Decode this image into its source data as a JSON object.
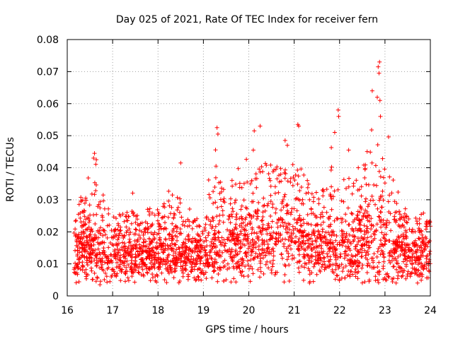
{
  "chart_data": {
    "type": "scatter",
    "title": "Day 025 of 2021, Rate Of TEC Index for receiver fern",
    "xlabel": "GPS time / hours",
    "ylabel": "ROTI / TECUs",
    "xlim": [
      16,
      24
    ],
    "ylim": [
      0,
      0.08
    ],
    "xticks": [
      "16",
      "17",
      "18",
      "19",
      "20",
      "21",
      "22",
      "23",
      "24"
    ],
    "yticks": [
      "0",
      "0.01",
      "0.02",
      "0.03",
      "0.04",
      "0.05",
      "0.06",
      "0.07",
      "0.08"
    ],
    "grid": true,
    "marker": "+",
    "series": [
      {
        "name": "ROTI",
        "color": "#ff0000",
        "profile": [
          {
            "x": 16.15,
            "base": 0.013,
            "spread": 0.007,
            "peak": 0.031
          },
          {
            "x": 16.4,
            "base": 0.014,
            "spread": 0.008,
            "peak": 0.038
          },
          {
            "x": 16.6,
            "base": 0.015,
            "spread": 0.009,
            "peak": 0.044
          },
          {
            "x": 16.8,
            "base": 0.013,
            "spread": 0.007,
            "peak": 0.037
          },
          {
            "x": 17.0,
            "base": 0.012,
            "spread": 0.006,
            "peak": 0.029
          },
          {
            "x": 17.5,
            "base": 0.013,
            "spread": 0.006,
            "peak": 0.034
          },
          {
            "x": 18.0,
            "base": 0.013,
            "spread": 0.006,
            "peak": 0.033
          },
          {
            "x": 18.5,
            "base": 0.013,
            "spread": 0.006,
            "peak": 0.042
          },
          {
            "x": 18.8,
            "base": 0.011,
            "spread": 0.005,
            "peak": 0.03
          },
          {
            "x": 19.0,
            "base": 0.013,
            "spread": 0.006,
            "peak": 0.031
          },
          {
            "x": 19.3,
            "base": 0.016,
            "spread": 0.009,
            "peak": 0.053
          },
          {
            "x": 19.6,
            "base": 0.016,
            "spread": 0.008,
            "peak": 0.044
          },
          {
            "x": 20.0,
            "base": 0.016,
            "spread": 0.008,
            "peak": 0.046
          },
          {
            "x": 20.3,
            "base": 0.017,
            "spread": 0.009,
            "peak": 0.053
          },
          {
            "x": 20.8,
            "base": 0.018,
            "spread": 0.009,
            "peak": 0.049
          },
          {
            "x": 21.1,
            "base": 0.017,
            "spread": 0.008,
            "peak": 0.054
          },
          {
            "x": 21.5,
            "base": 0.016,
            "spread": 0.008,
            "peak": 0.038
          },
          {
            "x": 22.0,
            "base": 0.014,
            "spread": 0.008,
            "peak": 0.058
          },
          {
            "x": 22.3,
            "base": 0.015,
            "spread": 0.009,
            "peak": 0.046
          },
          {
            "x": 22.7,
            "base": 0.016,
            "spread": 0.01,
            "peak": 0.064
          },
          {
            "x": 22.9,
            "base": 0.017,
            "spread": 0.011,
            "peak": 0.073
          },
          {
            "x": 23.2,
            "base": 0.014,
            "spread": 0.008,
            "peak": 0.038
          },
          {
            "x": 23.6,
            "base": 0.013,
            "spread": 0.007,
            "peak": 0.028
          },
          {
            "x": 24.0,
            "base": 0.013,
            "spread": 0.007,
            "peak": 0.025
          }
        ],
        "notable_points": [
          {
            "x": 22.88,
            "y": 0.073
          },
          {
            "x": 22.85,
            "y": 0.0715
          },
          {
            "x": 22.87,
            "y": 0.0695
          },
          {
            "x": 22.72,
            "y": 0.064
          },
          {
            "x": 22.83,
            "y": 0.062
          },
          {
            "x": 22.89,
            "y": 0.061
          },
          {
            "x": 22.9,
            "y": 0.056
          },
          {
            "x": 21.97,
            "y": 0.058
          },
          {
            "x": 21.98,
            "y": 0.056
          },
          {
            "x": 21.08,
            "y": 0.0535
          },
          {
            "x": 21.1,
            "y": 0.053
          },
          {
            "x": 20.25,
            "y": 0.053
          },
          {
            "x": 20.12,
            "y": 0.0515
          },
          {
            "x": 19.3,
            "y": 0.0525
          },
          {
            "x": 19.32,
            "y": 0.0505
          },
          {
            "x": 20.8,
            "y": 0.0485
          },
          {
            "x": 20.85,
            "y": 0.047
          },
          {
            "x": 22.2,
            "y": 0.0455
          },
          {
            "x": 20.1,
            "y": 0.0455
          },
          {
            "x": 16.58,
            "y": 0.043
          },
          {
            "x": 16.6,
            "y": 0.0445
          },
          {
            "x": 18.5,
            "y": 0.0415
          },
          {
            "x": 16.72,
            "y": 0.0035
          },
          {
            "x": 22.65,
            "y": 0.0045
          }
        ],
        "count": 2600
      }
    ]
  }
}
